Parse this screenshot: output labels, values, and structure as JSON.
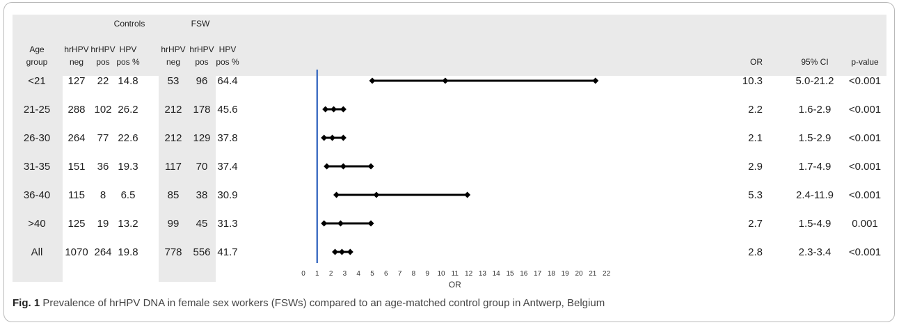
{
  "table": {
    "group_headers": {
      "controls": "Controls",
      "fsw": "FSW"
    },
    "col_headers": [
      [
        "Age",
        "group"
      ],
      [
        "hrHPV",
        "neg"
      ],
      [
        "hrHPV",
        "pos"
      ],
      [
        "HPV",
        "pos %"
      ],
      [
        "hrHPV",
        "neg"
      ],
      [
        "hrHPV",
        "pos"
      ],
      [
        "HPV",
        "pos %"
      ]
    ],
    "right_headers": [
      "OR",
      "95% CI",
      "p-value"
    ],
    "rows": [
      {
        "age": "<21",
        "c_neg": "127",
        "c_pos": "22",
        "c_pct": "14.8",
        "f_neg": "53",
        "f_pos": "96",
        "f_pct": "64.4",
        "or": "10.3",
        "ci": "5.0-21.2",
        "p": "<0.001"
      },
      {
        "age": "21-25",
        "c_neg": "288",
        "c_pos": "102",
        "c_pct": "26.2",
        "f_neg": "212",
        "f_pos": "178",
        "f_pct": "45.6",
        "or": "2.2",
        "ci": "1.6-2.9",
        "p": "<0.001"
      },
      {
        "age": "26-30",
        "c_neg": "264",
        "c_pos": "77",
        "c_pct": "22.6",
        "f_neg": "212",
        "f_pos": "129",
        "f_pct": "37.8",
        "or": "2.1",
        "ci": "1.5-2.9",
        "p": "<0.001"
      },
      {
        "age": "31-35",
        "c_neg": "151",
        "c_pos": "36",
        "c_pct": "19.3",
        "f_neg": "117",
        "f_pos": "70",
        "f_pct": "37.4",
        "or": "2.9",
        "ci": "1.7-4.9",
        "p": "<0.001"
      },
      {
        "age": "36-40",
        "c_neg": "115",
        "c_pos": "8",
        "c_pct": "6.5",
        "f_neg": "85",
        "f_pos": "38",
        "f_pct": "30.9",
        "or": "5.3",
        "ci": "2.4-11.9",
        "p": "<0.001"
      },
      {
        "age": ">40",
        "c_neg": "125",
        "c_pos": "19",
        "c_pct": "13.2",
        "f_neg": "99",
        "f_pos": "45",
        "f_pct": "31.3",
        "or": "2.7",
        "ci": "1.5-4.9",
        "p": "0.001"
      },
      {
        "age": "All",
        "c_neg": "1070",
        "c_pos": "264",
        "c_pct": "19.8",
        "f_neg": "778",
        "f_pos": "556",
        "f_pct": "41.7",
        "or": "2.8",
        "ci": "2.3-3.4",
        "p": "<0.001"
      }
    ]
  },
  "chart_data": {
    "type": "scatter",
    "subtype": "forest-plot",
    "title": "",
    "xlabel": "OR",
    "xlim": [
      0,
      22
    ],
    "xticks": [
      0,
      1,
      2,
      3,
      4,
      5,
      6,
      7,
      8,
      9,
      10,
      11,
      12,
      13,
      14,
      15,
      16,
      17,
      18,
      19,
      20,
      21,
      22
    ],
    "reference_line": 1,
    "reference_color": "#4472c4",
    "marker_color": "#000000",
    "categories": [
      "<21",
      "21-25",
      "26-30",
      "31-35",
      "36-40",
      ">40",
      "All"
    ],
    "or_values": [
      10.3,
      2.2,
      2.1,
      2.9,
      5.3,
      2.7,
      2.8
    ],
    "ci_lower": [
      5.0,
      1.6,
      1.5,
      1.7,
      2.4,
      1.5,
      2.3
    ],
    "ci_upper": [
      21.2,
      2.9,
      2.9,
      4.9,
      11.9,
      4.9,
      3.4
    ]
  },
  "caption": {
    "label": "Fig. 1",
    "text": "Prevalence of hrHPV DNA in female sex workers (FSWs) compared to an age-matched control group in Antwerp, Belgium"
  },
  "colors": {
    "table_shade": "#eaeaea",
    "frame_border": "#b9b9b9"
  }
}
